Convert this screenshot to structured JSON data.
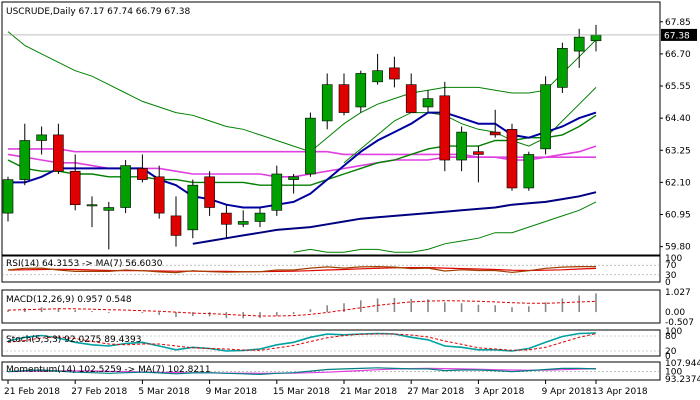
{
  "chart_data": {
    "type": "candlestick",
    "colors": {
      "bull": "#00a000",
      "bear": "#e00000",
      "ma_fast": "#0000a0",
      "ma_mid": "#008000",
      "ma_pink": "#e040e0",
      "ma_long": "#000080",
      "bb": "#008000",
      "price_box": "#000000"
    },
    "main": {
      "title": "USCRUDE,Daily 67.17 67.74 66.79 67.38",
      "last_price": "67.38",
      "ylim": [
        59.5,
        68.2
      ],
      "y_ticks": [
        "67.85",
        "66.70",
        "65.55",
        "64.40",
        "63.25",
        "62.10",
        "60.95",
        "59.80"
      ],
      "candles": [
        {
          "o": 61.0,
          "h": 62.3,
          "l": 60.7,
          "c": 62.2
        },
        {
          "o": 62.2,
          "h": 64.2,
          "l": 62.0,
          "c": 63.6
        },
        {
          "o": 63.6,
          "h": 64.1,
          "l": 63.1,
          "c": 63.8
        },
        {
          "o": 63.8,
          "h": 64.2,
          "l": 62.4,
          "c": 62.5
        },
        {
          "o": 62.5,
          "h": 63.1,
          "l": 61.1,
          "c": 61.3
        },
        {
          "o": 61.3,
          "h": 61.6,
          "l": 60.5,
          "c": 61.3
        },
        {
          "o": 61.1,
          "h": 61.4,
          "l": 59.7,
          "c": 61.2
        },
        {
          "o": 61.2,
          "h": 62.9,
          "l": 61.0,
          "c": 62.7
        },
        {
          "o": 62.6,
          "h": 63.1,
          "l": 62.1,
          "c": 62.2
        },
        {
          "o": 62.3,
          "h": 62.7,
          "l": 60.8,
          "c": 61.0
        },
        {
          "o": 60.9,
          "h": 61.6,
          "l": 59.8,
          "c": 60.2
        },
        {
          "o": 60.4,
          "h": 62.2,
          "l": 60.1,
          "c": 62.0
        },
        {
          "o": 62.3,
          "h": 62.5,
          "l": 60.9,
          "c": 61.2
        },
        {
          "o": 61.0,
          "h": 61.3,
          "l": 60.1,
          "c": 60.6
        },
        {
          "o": 60.6,
          "h": 61.1,
          "l": 60.5,
          "c": 60.7
        },
        {
          "o": 60.7,
          "h": 61.2,
          "l": 60.5,
          "c": 61.0
        },
        {
          "o": 61.1,
          "h": 62.7,
          "l": 60.9,
          "c": 62.4
        },
        {
          "o": 62.2,
          "h": 62.4,
          "l": 61.7,
          "c": 62.3
        },
        {
          "o": 62.4,
          "h": 64.6,
          "l": 62.3,
          "c": 64.4
        },
        {
          "o": 64.3,
          "h": 66.0,
          "l": 64.0,
          "c": 65.6
        },
        {
          "o": 65.6,
          "h": 66.0,
          "l": 64.5,
          "c": 64.6
        },
        {
          "o": 64.8,
          "h": 66.1,
          "l": 64.6,
          "c": 66.0
        },
        {
          "o": 65.7,
          "h": 66.7,
          "l": 65.6,
          "c": 66.1
        },
        {
          "o": 66.2,
          "h": 66.6,
          "l": 65.5,
          "c": 65.8
        },
        {
          "o": 65.6,
          "h": 66.0,
          "l": 64.6,
          "c": 64.6
        },
        {
          "o": 64.8,
          "h": 65.4,
          "l": 64.6,
          "c": 65.1
        },
        {
          "o": 65.2,
          "h": 65.7,
          "l": 62.5,
          "c": 62.9
        },
        {
          "o": 62.9,
          "h": 64.1,
          "l": 62.5,
          "c": 63.9
        },
        {
          "o": 63.2,
          "h": 63.4,
          "l": 62.1,
          "c": 63.1
        },
        {
          "o": 63.9,
          "h": 64.7,
          "l": 63.7,
          "c": 63.8
        },
        {
          "o": 64.0,
          "h": 64.2,
          "l": 61.8,
          "c": 61.9
        },
        {
          "o": 61.9,
          "h": 63.2,
          "l": 61.8,
          "c": 63.1
        },
        {
          "o": 63.3,
          "h": 65.9,
          "l": 63.1,
          "c": 65.6
        },
        {
          "o": 65.5,
          "h": 67.1,
          "l": 65.3,
          "c": 66.9
        },
        {
          "o": 66.8,
          "h": 67.6,
          "l": 66.2,
          "c": 67.3
        },
        {
          "o": 67.17,
          "h": 67.74,
          "l": 66.79,
          "c": 67.38
        }
      ],
      "bb_upper": [
        67.5,
        67.0,
        66.7,
        66.4,
        66.1,
        65.9,
        65.6,
        65.3,
        65.0,
        64.8,
        64.6,
        64.5,
        64.3,
        64.1,
        64.0,
        63.8,
        63.6,
        63.4,
        63.2,
        63.7,
        64.2,
        64.6,
        64.9,
        65.1,
        65.3,
        65.4,
        65.5,
        65.5,
        65.5,
        65.4,
        65.3,
        65.3,
        65.4,
        66.0,
        66.6,
        67.2
      ],
      "bb_lower": [
        null,
        null,
        null,
        null,
        null,
        null,
        null,
        null,
        null,
        null,
        null,
        null,
        null,
        null,
        null,
        null,
        null,
        59.6,
        59.7,
        59.6,
        59.6,
        59.7,
        59.7,
        59.6,
        59.6,
        59.7,
        59.9,
        60.0,
        60.1,
        60.3,
        60.3,
        60.5,
        60.7,
        60.9,
        61.1,
        61.4
      ],
      "ma_fast": [
        62.1,
        62.1,
        62.3,
        62.6,
        62.6,
        62.6,
        62.6,
        62.6,
        62.6,
        62.2,
        62.0,
        61.6,
        61.5,
        61.3,
        61.2,
        61.2,
        61.3,
        61.4,
        61.7,
        62.2,
        62.7,
        63.2,
        63.6,
        63.9,
        64.2,
        64.6,
        64.6,
        64.4,
        64.2,
        64.2,
        63.8,
        63.7,
        63.9,
        64.1,
        64.4,
        64.6
      ],
      "ma_mid": [
        62.9,
        62.6,
        62.5,
        62.5,
        62.4,
        62.4,
        62.3,
        62.3,
        62.3,
        62.2,
        62.2,
        62.1,
        62.1,
        62.1,
        62.1,
        62.0,
        62.0,
        62.0,
        62.0,
        62.2,
        62.4,
        62.6,
        62.8,
        62.9,
        63.1,
        63.3,
        63.4,
        63.4,
        63.4,
        63.6,
        63.6,
        63.7,
        63.7,
        63.8,
        64.1,
        64.5
      ],
      "ma_mid2": [
        null,
        null,
        null,
        null,
        null,
        null,
        null,
        null,
        null,
        null,
        null,
        null,
        null,
        null,
        null,
        null,
        null,
        null,
        null,
        null,
        62.8,
        63.3,
        63.8,
        64.3,
        64.6,
        64.6,
        64.5,
        64.2,
        64.0,
        63.9,
        63.6,
        63.4,
        63.7,
        64.3,
        64.9,
        65.5
      ],
      "ma_pink": [
        63.1,
        63.0,
        62.9,
        62.8,
        62.8,
        62.7,
        62.6,
        62.6,
        62.6,
        62.6,
        62.5,
        62.4,
        62.4,
        62.4,
        62.4,
        62.4,
        62.3,
        62.3,
        62.4,
        62.5,
        62.6,
        62.7,
        62.8,
        62.9,
        62.9,
        62.9,
        63.0,
        63.0,
        63.0,
        63.0,
        62.9,
        62.9,
        63.0,
        63.1,
        63.2,
        63.4
      ],
      "ma_pink_b": [
        63.3,
        63.3,
        63.3,
        63.3,
        63.2,
        63.2,
        63.2,
        63.2,
        63.2,
        63.2,
        63.2,
        63.2,
        63.2,
        63.2,
        63.2,
        63.2,
        63.2,
        63.2,
        63.2,
        63.2,
        63.1,
        63.1,
        63.1,
        63.1,
        63.1,
        63.1,
        63.1,
        63.1,
        63.0,
        63.0,
        63.0,
        63.0,
        63.0,
        63.0,
        63.0,
        63.0
      ],
      "ma_long": [
        null,
        null,
        null,
        null,
        null,
        null,
        null,
        null,
        null,
        null,
        null,
        59.9,
        60.0,
        60.1,
        60.2,
        60.3,
        60.4,
        60.45,
        60.5,
        60.6,
        60.7,
        60.8,
        60.85,
        60.9,
        60.95,
        61.0,
        61.05,
        61.1,
        61.15,
        61.2,
        61.3,
        61.35,
        61.4,
        61.5,
        61.6,
        61.75
      ]
    },
    "rsi": {
      "label": "RSI(14) 64.3153 -> MA(7) 56.6030",
      "y_ticks": [
        "100",
        "70",
        "30",
        "0"
      ],
      "values": [
        50,
        57,
        58,
        50,
        44,
        44,
        44,
        50,
        47,
        42,
        39,
        47,
        43,
        41,
        42,
        43,
        50,
        50,
        58,
        63,
        58,
        63,
        64,
        62,
        56,
        58,
        46,
        51,
        48,
        48,
        40,
        47,
        57,
        62,
        64,
        64.3
      ],
      "ma": [
        50,
        51,
        52,
        53,
        52,
        50,
        48,
        47,
        47,
        46,
        45,
        45,
        44,
        44,
        43,
        43,
        44,
        45,
        47,
        50,
        52,
        55,
        57,
        59,
        60,
        60,
        58,
        56,
        54,
        52,
        49,
        48,
        49,
        51,
        54,
        56.6
      ]
    },
    "macd": {
      "label": "MACD(12,26,9) 0.957 0.548",
      "y_ticks": [
        "1.027",
        "0.00",
        "-0.507"
      ],
      "hist": [
        0.1,
        0.2,
        0.25,
        0.2,
        0.1,
        0.05,
        -0.05,
        0.0,
        -0.05,
        -0.15,
        -0.25,
        -0.2,
        -0.22,
        -0.3,
        -0.32,
        -0.3,
        -0.2,
        -0.1,
        0.15,
        0.35,
        0.45,
        0.6,
        0.7,
        0.72,
        0.68,
        0.65,
        0.5,
        0.45,
        0.38,
        0.35,
        0.25,
        0.3,
        0.5,
        0.7,
        0.85,
        0.957
      ],
      "signal": [
        0.1,
        0.12,
        0.15,
        0.17,
        0.17,
        0.15,
        0.12,
        0.1,
        0.07,
        0.04,
        0.0,
        -0.05,
        -0.08,
        -0.12,
        -0.16,
        -0.2,
        -0.2,
        -0.18,
        -0.12,
        -0.02,
        0.1,
        0.22,
        0.34,
        0.44,
        0.52,
        0.56,
        0.58,
        0.57,
        0.55,
        0.52,
        0.48,
        0.45,
        0.45,
        0.48,
        0.52,
        0.548
      ]
    },
    "stoch": {
      "label": "Stoch(5,3,3) 92.0275 89.4393",
      "y_ticks": [
        "100",
        "80",
        "20",
        "0"
      ],
      "k": [
        60,
        75,
        82,
        72,
        55,
        45,
        40,
        50,
        55,
        40,
        25,
        35,
        30,
        20,
        22,
        28,
        45,
        55,
        75,
        88,
        85,
        88,
        90,
        88,
        75,
        65,
        40,
        35,
        25,
        25,
        20,
        30,
        55,
        78,
        90,
        92
      ],
      "d": [
        55,
        62,
        72,
        76,
        70,
        58,
        48,
        45,
        48,
        48,
        40,
        33,
        30,
        28,
        24,
        23,
        32,
        42,
        58,
        73,
        82,
        87,
        88,
        88,
        84,
        76,
        60,
        47,
        33,
        28,
        23,
        25,
        35,
        55,
        75,
        89.4
      ]
    },
    "momentum": {
      "label": "Momentum(14) 102.5259 -> MA(7) 102.8211",
      "y_ticks": [
        "107.9449",
        "100",
        "93.2374"
      ],
      "values": [
        100,
        101,
        101.5,
        100.5,
        99.5,
        99,
        98.5,
        99,
        99.5,
        98.8,
        98,
        98.8,
        99,
        98.5,
        98,
        97.5,
        98.5,
        99,
        100.5,
        102,
        102.5,
        103,
        103.5,
        103,
        102.5,
        102.5,
        101,
        101.5,
        101.5,
        101,
        100,
        101,
        102,
        103,
        103,
        102.5
      ],
      "ma": [
        100,
        100.3,
        100.6,
        100.8,
        100.8,
        100.6,
        100.3,
        100,
        99.7,
        99.4,
        99.1,
        98.9,
        98.8,
        98.7,
        98.6,
        98.5,
        98.6,
        98.7,
        99,
        99.5,
        100.2,
        101,
        101.8,
        102.4,
        102.8,
        103,
        102.8,
        102.5,
        102.2,
        101.8,
        101.5,
        101.3,
        101.4,
        101.8,
        102.3,
        102.8
      ]
    },
    "x_labels": [
      "21 Feb 2018",
      "27 Feb 2018",
      "5 Mar 2018",
      "9 Mar 2018",
      "15 Mar 2018",
      "21 Mar 2018",
      "27 Mar 2018",
      "3 Apr 2018",
      "9 Apr 2018",
      "13 Apr 2018"
    ],
    "x_label_at": [
      0,
      4,
      8,
      12,
      16,
      20,
      24,
      28,
      32,
      35
    ]
  }
}
